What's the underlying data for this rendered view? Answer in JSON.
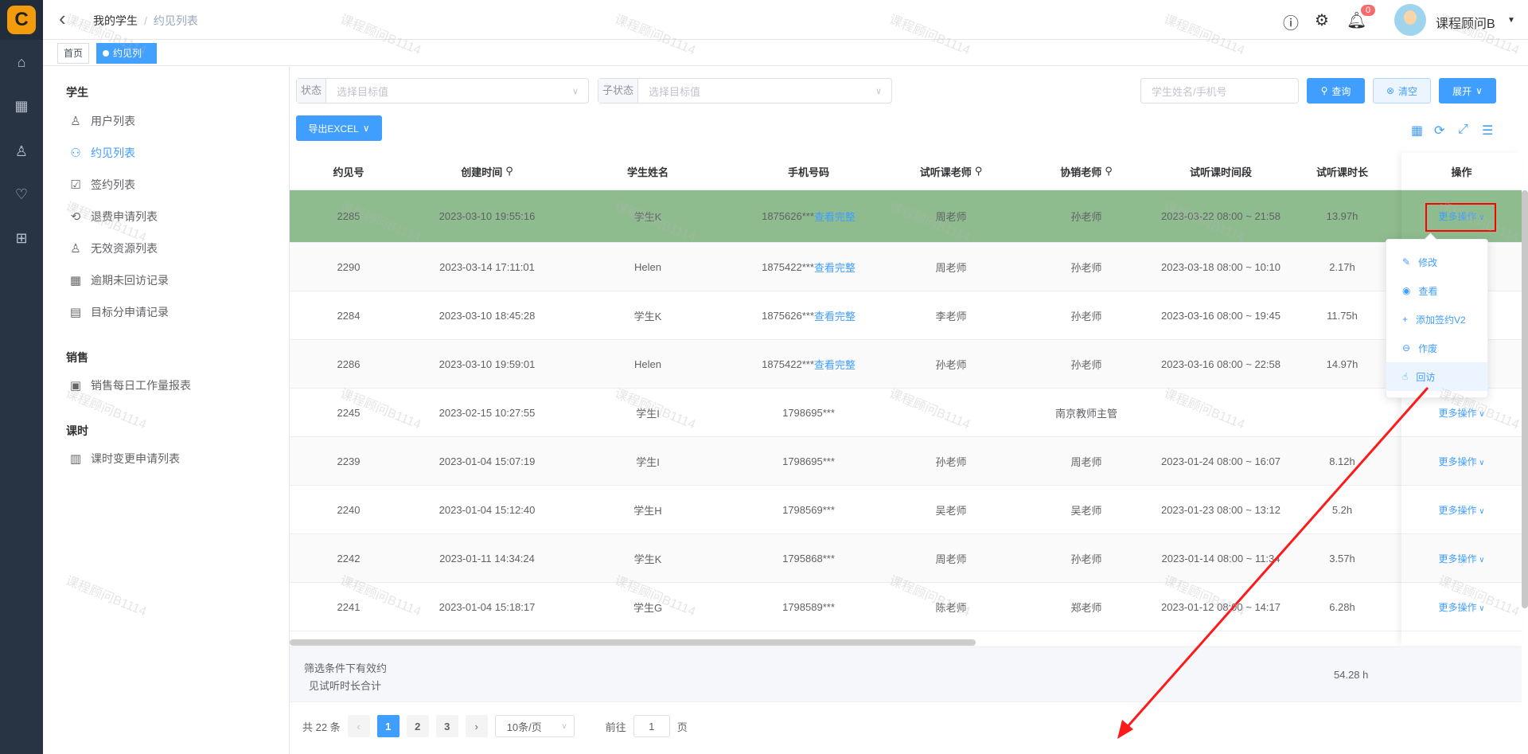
{
  "brand": {
    "logo_letter": "C"
  },
  "header": {
    "breadcrumb": [
      "我的学生",
      "约见列表"
    ],
    "separator": "/",
    "notification_count": "0",
    "user_name": "课程顾问B"
  },
  "tabs": [
    {
      "label": "首页"
    },
    {
      "label": "约见列表",
      "close": "×"
    }
  ],
  "sidebar": {
    "groups": [
      {
        "title": "学生",
        "items": [
          {
            "label": "用户列表",
            "icon": "user-icon"
          },
          {
            "label": "约见列表",
            "icon": "appointment-icon",
            "active": true
          },
          {
            "label": "签约列表",
            "icon": "contract-icon"
          },
          {
            "label": "退费申请列表",
            "icon": "refund-icon"
          },
          {
            "label": "无效资源列表",
            "icon": "invalid-user-icon"
          },
          {
            "label": "逾期未回访记录",
            "icon": "calendar-icon"
          },
          {
            "label": "目标分申请记录",
            "icon": "clipboard-icon"
          }
        ]
      },
      {
        "title": "销售",
        "items": [
          {
            "label": "销售每日工作量报表",
            "icon": "report-icon"
          }
        ]
      },
      {
        "title": "课时",
        "items": [
          {
            "label": "课时变更申请列表",
            "icon": "document-icon"
          }
        ]
      }
    ]
  },
  "filters": {
    "status_label": "状态",
    "status_placeholder": "选择目标值",
    "substatus_label": "子状态",
    "substatus_placeholder": "选择目标值",
    "search_placeholder": "学生姓名/手机号",
    "query": "查询",
    "clear": "清空",
    "expand": "展开",
    "export": "导出EXCEL"
  },
  "table": {
    "columns": [
      "约见号",
      "创建时间",
      "学生姓名",
      "手机号码",
      "试听课老师",
      "协销老师",
      "试听课时间段",
      "试听课时长",
      "操作"
    ],
    "view_full": "查看完整",
    "more_actions": "更多操作",
    "rows": [
      [
        "2285",
        "2023-03-10 19:55:16",
        "学生K",
        "1875626***",
        "周老师",
        "孙老师",
        "2023-03-22 08:00 ~ 21:58",
        "13.97h"
      ],
      [
        "2290",
        "2023-03-14 17:11:01",
        "Helen",
        "1875422***",
        "周老师",
        "孙老师",
        "2023-03-18 08:00 ~ 10:10",
        "2.17h"
      ],
      [
        "2284",
        "2023-03-10 18:45:28",
        "学生K",
        "1875626***",
        "李老师",
        "孙老师",
        "2023-03-16 08:00 ~ 19:45",
        "11.75h"
      ],
      [
        "2286",
        "2023-03-10 19:59:01",
        "Helen",
        "1875422***",
        "孙老师",
        "孙老师",
        "2023-03-16 08:00 ~ 22:58",
        "14.97h"
      ],
      [
        "2245",
        "2023-02-15 10:27:55",
        "学生I",
        "1798695***",
        "",
        "南京教师主管",
        "",
        ""
      ],
      [
        "2239",
        "2023-01-04 15:07:19",
        "学生I",
        "1798695***",
        "孙老师",
        "周老师",
        "2023-01-24 08:00 ~ 16:07",
        "8.12h"
      ],
      [
        "2240",
        "2023-01-04 15:12:40",
        "学生H",
        "1798569***",
        "吴老师",
        "吴老师",
        "2023-01-23 08:00 ~ 13:12",
        "5.2h"
      ],
      [
        "2242",
        "2023-01-11 14:34:24",
        "学生K",
        "1795868***",
        "周老师",
        "孙老师",
        "2023-01-14 08:00 ~ 11:34",
        "3.57h"
      ],
      [
        "2241",
        "2023-01-04 15:18:17",
        "学生G",
        "1798589***",
        "陈老师",
        "郑老师",
        "2023-01-12 08:00 ~ 14:17",
        "6.28h"
      ]
    ],
    "rows_with_view_full": [
      0,
      1,
      2,
      3
    ],
    "highlight_row_color": "#8fbc8f"
  },
  "summary": {
    "label_line1": "筛选条件下有效约",
    "label_line2": "见试听时长合计",
    "total": "54.28 h"
  },
  "pagination": {
    "total": "共 22 条",
    "pages": [
      "1",
      "2",
      "3"
    ],
    "current": "1",
    "page_size": "10条/页",
    "goto_label": "前往",
    "goto_value": "1",
    "page_suffix": "页"
  },
  "dropdown": {
    "items": [
      {
        "label": "修改",
        "icon": "edit-icon"
      },
      {
        "label": "查看",
        "icon": "eye-icon"
      },
      {
        "label": "添加签约V2",
        "icon": "plus-icon"
      },
      {
        "label": "作废",
        "icon": "minus-circle-icon"
      },
      {
        "label": "回访",
        "icon": "thumb-icon"
      }
    ]
  },
  "watermark": "课程顾问B1114",
  "annotation_color": "#ff0000"
}
